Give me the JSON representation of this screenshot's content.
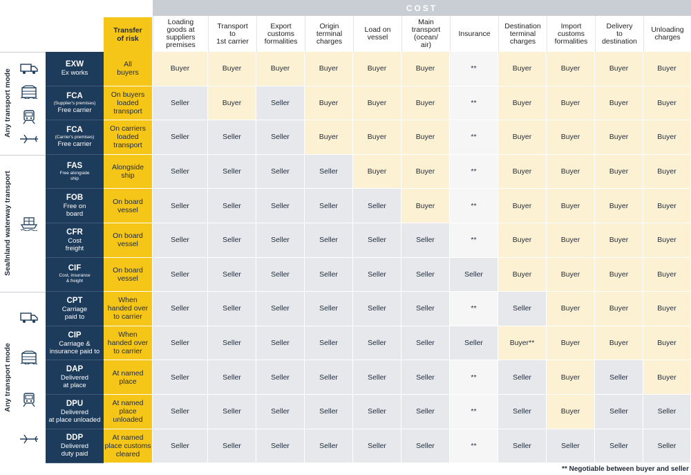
{
  "cost_banner": "COST",
  "risk_header": "Transfer\nof risk",
  "columns": [
    "Loading\ngoods at\nsuppliers\npremises",
    "Transport\nto\n1st carrier",
    "Export\ncustoms\nformalities",
    "Origin\nterminal\ncharges",
    "Load on\nvessel",
    "Main\ntransport\n(ocean/\nair)",
    "Insurance",
    "Destination\nterminal\ncharges",
    "Import\ncustoms\nformalities",
    "Delivery\nto\ndestination",
    "Unloading\ncharges"
  ],
  "groups": [
    {
      "label": "Any transport mode",
      "icons": [
        "truck-icon",
        "warehouse-icon",
        "train-icon",
        "airplane-icon"
      ]
    },
    {
      "label": "Sea/Inland waterway transport",
      "icons": [
        "ship-icon"
      ]
    },
    {
      "label": "Any transport mode",
      "icons": [
        "truck-icon",
        "warehouse-icon",
        "train-icon",
        "airplane-icon"
      ]
    }
  ],
  "rows": [
    {
      "code": "EXW",
      "sub": "",
      "name": "Ex works",
      "risk": "All\nbuyers",
      "cells": [
        "Buyer",
        "Buyer",
        "Buyer",
        "Buyer",
        "Buyer",
        "Buyer",
        "**",
        "Buyer",
        "Buyer",
        "Buyer",
        "Buyer"
      ]
    },
    {
      "code": "FCA",
      "sub": "(Supplier's premises)",
      "name": "Free carrier",
      "risk": "On buyers\nloaded\ntransport",
      "cells": [
        "Seller",
        "Buyer",
        "Seller",
        "Buyer",
        "Buyer",
        "Buyer",
        "**",
        "Buyer",
        "Buyer",
        "Buyer",
        "Buyer"
      ]
    },
    {
      "code": "FCA",
      "sub": "(Carrier's premises)",
      "name": "Free carrier",
      "risk": "On carriers\nloaded\ntransport",
      "cells": [
        "Seller",
        "Seller",
        "Seller",
        "Buyer",
        "Buyer",
        "Buyer",
        "**",
        "Buyer",
        "Buyer",
        "Buyer",
        "Buyer"
      ]
    },
    {
      "code": "FAS",
      "sub": "Free alongside\nship",
      "name": "",
      "risk": "Alongside\nship",
      "cells": [
        "Seller",
        "Seller",
        "Seller",
        "Seller",
        "Buyer",
        "Buyer",
        "**",
        "Buyer",
        "Buyer",
        "Buyer",
        "Buyer"
      ]
    },
    {
      "code": "FOB",
      "sub": "",
      "name": "Free on\nboard",
      "risk": "On board\nvessel",
      "cells": [
        "Seller",
        "Seller",
        "Seller",
        "Seller",
        "Seller",
        "Buyer",
        "**",
        "Buyer",
        "Buyer",
        "Buyer",
        "Buyer"
      ]
    },
    {
      "code": "CFR",
      "sub": "",
      "name": "Cost\nfreight",
      "risk": "On board\nvessel",
      "cells": [
        "Seller",
        "Seller",
        "Seller",
        "Seller",
        "Seller",
        "Seller",
        "**",
        "Buyer",
        "Buyer",
        "Buyer",
        "Buyer"
      ]
    },
    {
      "code": "CIF",
      "sub": "Cost, insurance\n& freight",
      "name": "",
      "risk": "On board\nvessel",
      "cells": [
        "Seller",
        "Seller",
        "Seller",
        "Seller",
        "Seller",
        "Seller",
        "Seller",
        "Buyer",
        "Buyer",
        "Buyer",
        "Buyer"
      ]
    },
    {
      "code": "CPT",
      "sub": "",
      "name": "Carriage\npaid to",
      "risk": "When\nhanded over\nto carrier",
      "cells": [
        "Seller",
        "Seller",
        "Seller",
        "Seller",
        "Seller",
        "Seller",
        "**",
        "Seller",
        "Buyer",
        "Buyer",
        "Buyer"
      ]
    },
    {
      "code": "CIP",
      "sub": "",
      "name": "Carriage &\ninsurance paid to",
      "risk": "When\nhanded over\nto carrier",
      "cells": [
        "Seller",
        "Seller",
        "Seller",
        "Seller",
        "Seller",
        "Seller",
        "Seller",
        "Buyer**",
        "Buyer",
        "Buyer",
        "Buyer"
      ]
    },
    {
      "code": "DAP",
      "sub": "",
      "name": "Delivered\nat place",
      "risk": "At named\nplace",
      "cells": [
        "Seller",
        "Seller",
        "Seller",
        "Seller",
        "Seller",
        "Seller",
        "**",
        "Seller",
        "Buyer",
        "Seller",
        "Buyer"
      ]
    },
    {
      "code": "DPU",
      "sub": "",
      "name": "Delivered\nat place unloaded",
      "risk": "At named\nplace\nunloaded",
      "cells": [
        "Seller",
        "Seller",
        "Seller",
        "Seller",
        "Seller",
        "Seller",
        "**",
        "Seller",
        "Buyer",
        "Seller",
        "Seller"
      ]
    },
    {
      "code": "DDP",
      "sub": "",
      "name": "Delivered\nduty paid",
      "risk": "At named\nplace customs\ncleared",
      "cells": [
        "Seller",
        "Seller",
        "Seller",
        "Seller",
        "Seller",
        "Seller",
        "**",
        "Seller",
        "Seller",
        "Seller",
        "Seller"
      ]
    }
  ],
  "footnote": "** Negotiable between buyer and seller"
}
